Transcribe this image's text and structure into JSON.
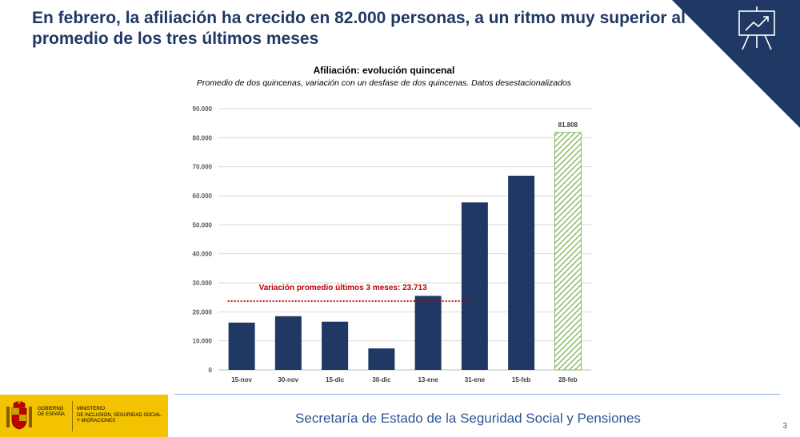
{
  "slide": {
    "headline": "En febrero, la afiliación ha crecido en 82.000 personas, a un ritmo muy superior al promedio de los tres últimos meses",
    "footer": "Secretaría de Estado de la Seguridad Social y Pensiones",
    "page_number": "3",
    "corner_icon": "presentation-chart-icon",
    "colors": {
      "headline": "#1f3864",
      "corner": "#1f3864",
      "bar": "#203864",
      "highlight": "#70ad47",
      "annotation": "#c00000",
      "footer": "#2e5597"
    }
  },
  "logo": {
    "government": "GOBIERNO\nDE ESPAÑA",
    "ministry": "MINISTERIO\nDE INCLUSIÓN, SEGURIDAD SOCIAL\nY MIGRACIONES"
  },
  "chart_data": {
    "type": "bar",
    "title": "Afiliación: evolución quincenal",
    "subtitle": "Promedio de dos quincenas, variación con un desfase de dos quincenas. Datos desestacionalizados",
    "categories": [
      "15-nov",
      "30-nov",
      "15-dic",
      "30-dic",
      "13-ene",
      "31-ene",
      "15-feb",
      "28-feb"
    ],
    "values": [
      16300,
      18500,
      16600,
      7400,
      25500,
      57700,
      66900,
      81808
    ],
    "highlighted_index": 7,
    "highlight_style": "green-hatched",
    "data_labels": [
      {
        "index": 7,
        "text": "81.808"
      }
    ],
    "ylim": [
      0,
      90000
    ],
    "yticks": [
      0,
      10000,
      20000,
      30000,
      40000,
      50000,
      60000,
      70000,
      80000,
      90000
    ],
    "ytick_labels": [
      "0",
      "10.000",
      "20.000",
      "30.000",
      "40.000",
      "50.000",
      "60.000",
      "70.000",
      "80.000",
      "90.000"
    ],
    "grid": true,
    "reference_line": {
      "value": 23713,
      "label": "Variación promedio últimos 3 meses: 23.713",
      "from_index": 0,
      "to_index": 5,
      "style": "dotted"
    },
    "xlabel": "",
    "ylabel": ""
  }
}
